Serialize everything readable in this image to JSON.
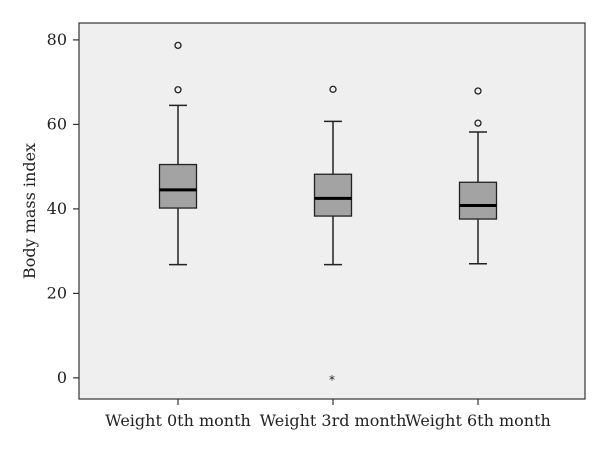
{
  "chart_data": {
    "type": "boxplot",
    "title": "",
    "xlabel": "",
    "ylabel": "Body mass index",
    "ylim": [
      -5,
      84
    ],
    "yticks": [
      0,
      20,
      40,
      60,
      80
    ],
    "grid": false,
    "colors": {
      "plot_bg": "#efefef",
      "box_fill": "#a3a3a3",
      "line": "#222222",
      "frame": "#333333"
    },
    "categories": [
      "Weight 0th month",
      "Weight 3rd month",
      "Weight 6th month"
    ],
    "boxes": [
      {
        "min": 26.8,
        "q1": 40.2,
        "median": 44.5,
        "q3": 50.5,
        "max": 64.5,
        "outliers": [
          68.2,
          78.7
        ],
        "extremes": []
      },
      {
        "min": 26.8,
        "q1": 38.3,
        "median": 42.5,
        "q3": 48.2,
        "max": 60.7,
        "outliers": [
          68.3
        ],
        "extremes": [
          0
        ]
      },
      {
        "min": 27.0,
        "q1": 37.6,
        "median": 40.8,
        "q3": 46.3,
        "max": 58.2,
        "outliers": [
          60.3,
          67.9
        ],
        "extremes": []
      }
    ]
  }
}
